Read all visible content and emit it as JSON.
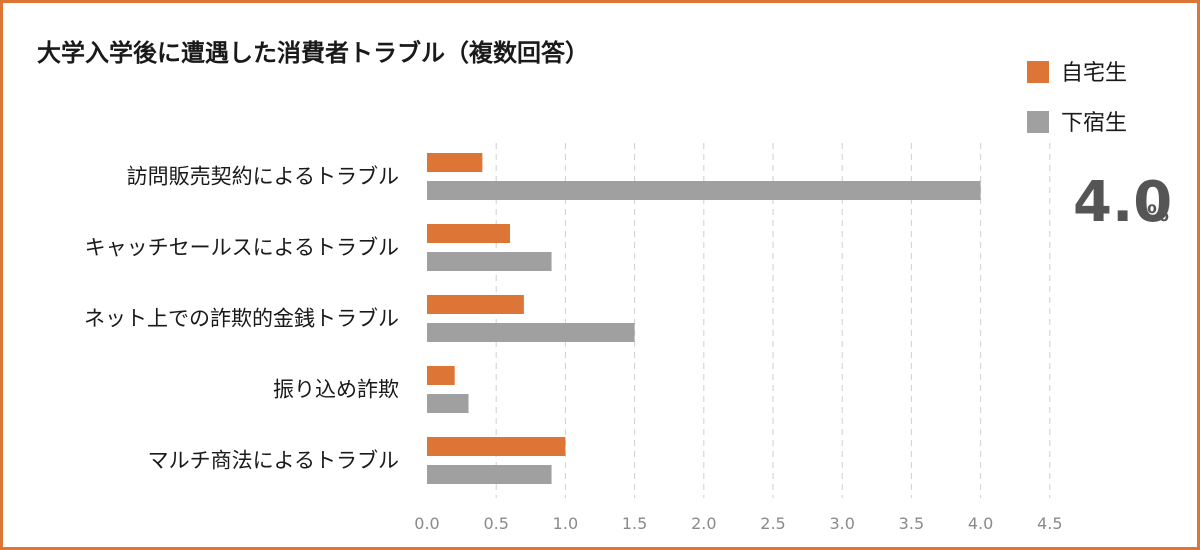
{
  "chart_data": {
    "type": "bar",
    "orientation": "horizontal",
    "title": "大学入学後に遭遇した消費者トラブル（複数回答）",
    "categories": [
      "訪問販売契約によるトラブル",
      "キャッチセールスによるトラブル",
      "ネット上での詐欺的金銭トラブル",
      "振り込め詐欺",
      "マルチ商法によるトラブル"
    ],
    "series": [
      {
        "name": "自宅生",
        "color": "#dc7535",
        "values": [
          0.4,
          0.6,
          0.7,
          0.2,
          1.0
        ]
      },
      {
        "name": "下宿生",
        "color": "#a0a0a0",
        "values": [
          4.0,
          0.9,
          1.5,
          0.3,
          0.9
        ]
      }
    ],
    "xlim": [
      0,
      4.5
    ],
    "xticks": [
      "0.0",
      "0.5",
      "1.0",
      "1.5",
      "2.0",
      "2.5",
      "3.0",
      "3.5",
      "4.0",
      "4.5"
    ],
    "grid": true,
    "legend_position": "top-right",
    "annotation": {
      "value": "4.0",
      "unit": "%"
    }
  }
}
